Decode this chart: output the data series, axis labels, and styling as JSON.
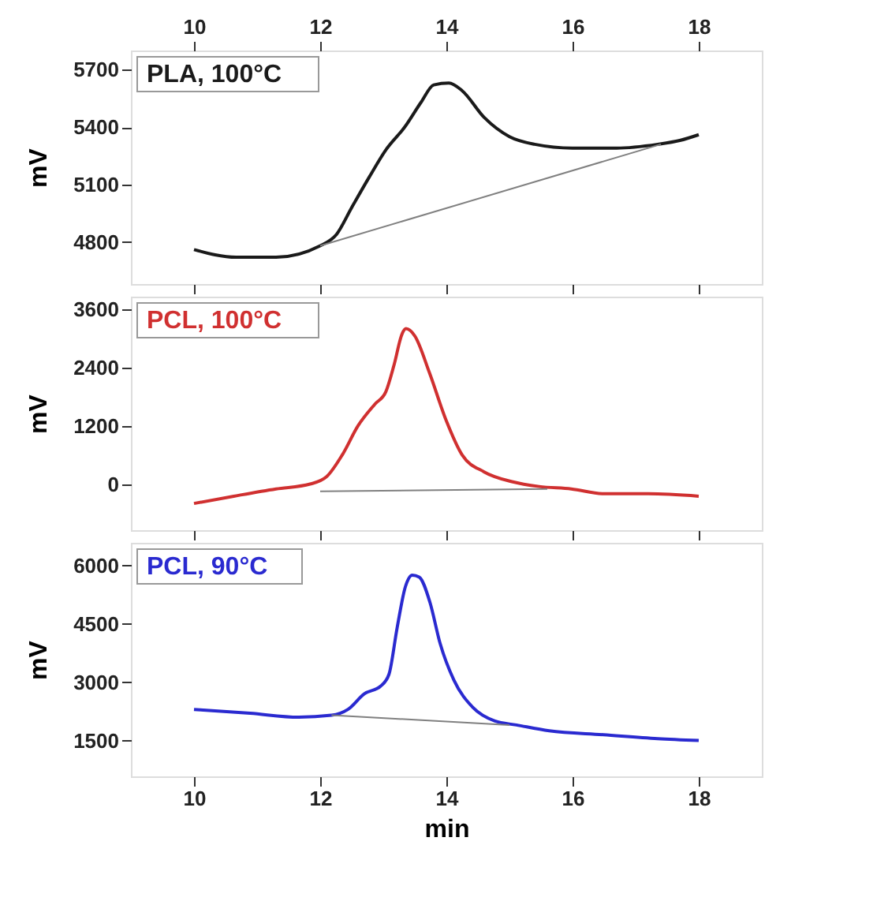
{
  "chart_data": [
    {
      "type": "line",
      "ylabel": "mV",
      "xlim": [
        9,
        19
      ],
      "xticks": [
        10,
        12,
        14,
        16,
        18
      ],
      "x2lim": [
        9,
        19
      ],
      "x2ticks": [
        10,
        12,
        14,
        16,
        18
      ],
      "tick_labels": "y",
      "ylim": [
        4580,
        5800
      ],
      "yticks": [
        4800,
        5100,
        5400,
        5700
      ],
      "grid": false,
      "legend": "top left",
      "line_style": "solid",
      "marker": "none",
      "series": [
        {
          "name": "PLA, 100°C",
          "color": "#1a1a1a",
          "x": [
            10,
            10.67,
            11.3,
            12,
            12.26,
            12.5,
            12.78,
            13.04,
            13.34,
            13.6,
            13.8,
            14.04,
            14.25,
            14.6,
            15.0,
            15.4,
            16.0,
            16.7,
            17.35,
            17.7,
            18
          ],
          "values": [
            4760,
            4720,
            4720,
            4780,
            4840,
            4980,
            5140,
            5280,
            5400,
            5530,
            5620,
            5630,
            5590,
            5450,
            5350,
            5310,
            5290,
            5290,
            5310,
            5330,
            5360
          ]
        },
        {
          "color": "#808080",
          "x": [
            12,
            17.4
          ],
          "values": [
            4780,
            5310
          ]
        }
      ]
    },
    {
      "type": "line",
      "ylabel": "mV",
      "xlim": [
        9,
        19
      ],
      "xticks": [
        10,
        12,
        14,
        16,
        18
      ],
      "tick_labels": "y",
      "ylim": [
        -950,
        3860
      ],
      "yticks": [
        0,
        1200,
        2400,
        3600
      ],
      "grid": false,
      "legend": "top left",
      "line_style": "solid",
      "marker": "none",
      "series": [
        {
          "name": "PCL, 100°C",
          "color": "#d03030",
          "x": [
            10,
            10.63,
            11.3,
            11.84,
            12.1,
            12.35,
            12.6,
            12.87,
            13.04,
            13.17,
            13.3,
            13.36,
            13.5,
            13.73,
            14,
            14.25,
            14.6,
            15.04,
            15.47,
            15.98,
            16.5,
            17.2,
            18
          ],
          "values": [
            -400,
            -250,
            -100,
            0,
            150,
            600,
            1200,
            1650,
            1900,
            2450,
            3100,
            3200,
            3050,
            2300,
            1300,
            600,
            250,
            50,
            -50,
            -100,
            -200,
            -200,
            -250
          ]
        },
        {
          "color": "#808080",
          "x": [
            12,
            15.6
          ],
          "values": [
            -150,
            -100
          ]
        }
      ]
    },
    {
      "type": "line",
      "xlabel": "min",
      "ylabel": "mV",
      "xlim": [
        9,
        19
      ],
      "xticks": [
        10,
        12,
        14,
        16,
        18
      ],
      "ylim": [
        580,
        6580
      ],
      "yticks": [
        1500,
        3000,
        4500,
        6000
      ],
      "grid": false,
      "legend": "top left",
      "line_style": "solid",
      "marker": "none",
      "series": [
        {
          "name": "PCL, 90°C",
          "color": "#2a2ad0",
          "x": [
            10,
            10.89,
            11.66,
            12.18,
            12.44,
            12.7,
            12.96,
            13.09,
            13.22,
            13.35,
            13.46,
            13.57,
            13.74,
            13.9,
            14.12,
            14.42,
            14.77,
            15.11,
            15.63,
            16.49,
            17.35,
            18
          ],
          "values": [
            2300,
            2200,
            2100,
            2150,
            2300,
            2700,
            2900,
            3200,
            4400,
            5450,
            5750,
            5700,
            5050,
            4000,
            3050,
            2350,
            2000,
            1900,
            1750,
            1650,
            1550,
            1500
          ]
        },
        {
          "color": "#808080",
          "x": [
            12.18,
            15.0
          ],
          "values": [
            2150,
            1900
          ]
        }
      ]
    }
  ]
}
